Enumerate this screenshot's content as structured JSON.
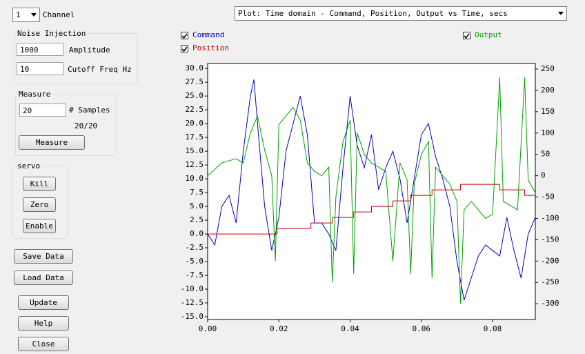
{
  "controls": {
    "channel_value": "1",
    "channel_label": "Channel",
    "plot_select": "Plot: Time domain - Command, Position, Output vs Time, secs",
    "noise_group": "Noise Injection",
    "amplitude_value": "1000",
    "amplitude_label": "Amplitude",
    "cutoff_value": "10",
    "cutoff_label": "Cutoff Freq Hz",
    "measure_group": "Measure",
    "samples_value": "20",
    "samples_label": "# Samples",
    "samples_progress": "20/20",
    "measure_button": "Measure",
    "servo_group": "servo",
    "kill_button": "Kill",
    "zero_button": "Zero",
    "enable_button": "Enable",
    "save_button": "Save Data",
    "load_button": "Load Data",
    "update_button": "Update",
    "help_button": "Help",
    "close_button": "Close"
  },
  "chart_data": {
    "type": "line",
    "xlim": [
      0,
      0.092
    ],
    "xticks": [
      {
        "value": 0,
        "label": "0.00"
      },
      0.02,
      0.04,
      0.06,
      0.08
    ],
    "ylim": [
      -15.5,
      30.9
    ],
    "yticks": [
      {
        "value": 30,
        "label": "30.0"
      },
      27.5,
      {
        "value": 25,
        "label": "25.0"
      },
      22.5,
      {
        "value": 20,
        "label": "20.0"
      },
      17.5,
      {
        "value": 15,
        "label": "15.0"
      },
      12.5,
      {
        "value": 10,
        "label": "10.0"
      },
      7.5,
      {
        "value": 5,
        "label": "5.0"
      },
      2.5,
      {
        "value": 0,
        "label": "0.0"
      },
      -2.5,
      {
        "value": -5,
        "label": "-5.0"
      },
      -7.5,
      {
        "value": -10,
        "label": "-10.0"
      },
      -12.5,
      {
        "value": -15,
        "label": "-15.0"
      }
    ],
    "y2lim": [
      -337,
      263
    ],
    "y2ticks": [
      250,
      200,
      150,
      100,
      50,
      0,
      -50,
      -100,
      -150,
      -200,
      -250,
      -300
    ],
    "series": [
      {
        "name": "Command",
        "color": "#0000c0",
        "x": [
          0,
          0.002,
          0.004,
          0.006,
          0.008,
          0.01,
          0.012,
          0.013,
          0.014,
          0.016,
          0.018,
          0.02,
          0.022,
          0.024,
          0.026,
          0.028,
          0.03,
          0.032,
          0.034,
          0.036,
          0.038,
          0.04,
          0.042,
          0.044,
          0.046,
          0.048,
          0.05,
          0.052,
          0.054,
          0.056,
          0.058,
          0.06,
          0.062,
          0.064,
          0.066,
          0.068,
          0.07,
          0.072,
          0.074,
          0.076,
          0.078,
          0.08,
          0.082,
          0.084,
          0.086,
          0.088,
          0.09,
          0.092
        ],
        "values": [
          0,
          -2,
          5,
          7,
          2,
          15,
          25,
          28,
          20,
          5,
          -3,
          3,
          15,
          20,
          25,
          18,
          2,
          2,
          0,
          -3,
          12,
          25,
          16,
          12,
          18,
          8,
          12,
          15,
          10,
          2,
          10,
          18,
          20,
          14,
          10,
          5,
          -5,
          -12,
          -8,
          -4,
          -2,
          -3,
          -4,
          3,
          -3,
          -8,
          0,
          3
        ]
      },
      {
        "name": "Position",
        "color": "#c00000",
        "x": [
          0,
          0.0195,
          0.0195,
          0.029,
          0.029,
          0.035,
          0.035,
          0.041,
          0.041,
          0.046,
          0.046,
          0.052,
          0.052,
          0.057,
          0.057,
          0.063,
          0.063,
          0.071,
          0.071,
          0.082,
          0.082,
          0.089,
          0.089,
          0.092
        ],
        "values": [
          0,
          0,
          1,
          1,
          2,
          2,
          3,
          3,
          4,
          4,
          5,
          5,
          6,
          6,
          7,
          7,
          8,
          8,
          9,
          9,
          8,
          8,
          7,
          7
        ]
      },
      {
        "name": "Output",
        "color": "#00a000",
        "axis": "y2",
        "x": [
          0,
          0.004,
          0.008,
          0.01,
          0.012,
          0.014,
          0.016,
          0.018,
          0.019,
          0.02,
          0.022,
          0.024,
          0.026,
          0.028,
          0.03,
          0.032,
          0.034,
          0.035,
          0.036,
          0.038,
          0.04,
          0.041,
          0.042,
          0.044,
          0.046,
          0.048,
          0.05,
          0.052,
          0.054,
          0.056,
          0.057,
          0.058,
          0.06,
          0.062,
          0.063,
          0.064,
          0.066,
          0.068,
          0.07,
          0.071,
          0.072,
          0.074,
          0.076,
          0.078,
          0.08,
          0.082,
          0.083,
          0.085,
          0.087,
          0.089,
          0.09,
          0.092
        ],
        "values": [
          0,
          30,
          40,
          30,
          100,
          140,
          60,
          0,
          -200,
          120,
          140,
          160,
          130,
          30,
          10,
          0,
          20,
          -250,
          -50,
          80,
          130,
          -230,
          100,
          50,
          30,
          20,
          10,
          -200,
          30,
          -10,
          -230,
          -20,
          50,
          80,
          -240,
          20,
          0,
          -20,
          -60,
          -300,
          -80,
          -60,
          -80,
          -100,
          -90,
          230,
          -60,
          -70,
          -80,
          230,
          -10,
          -40
        ]
      }
    ]
  }
}
